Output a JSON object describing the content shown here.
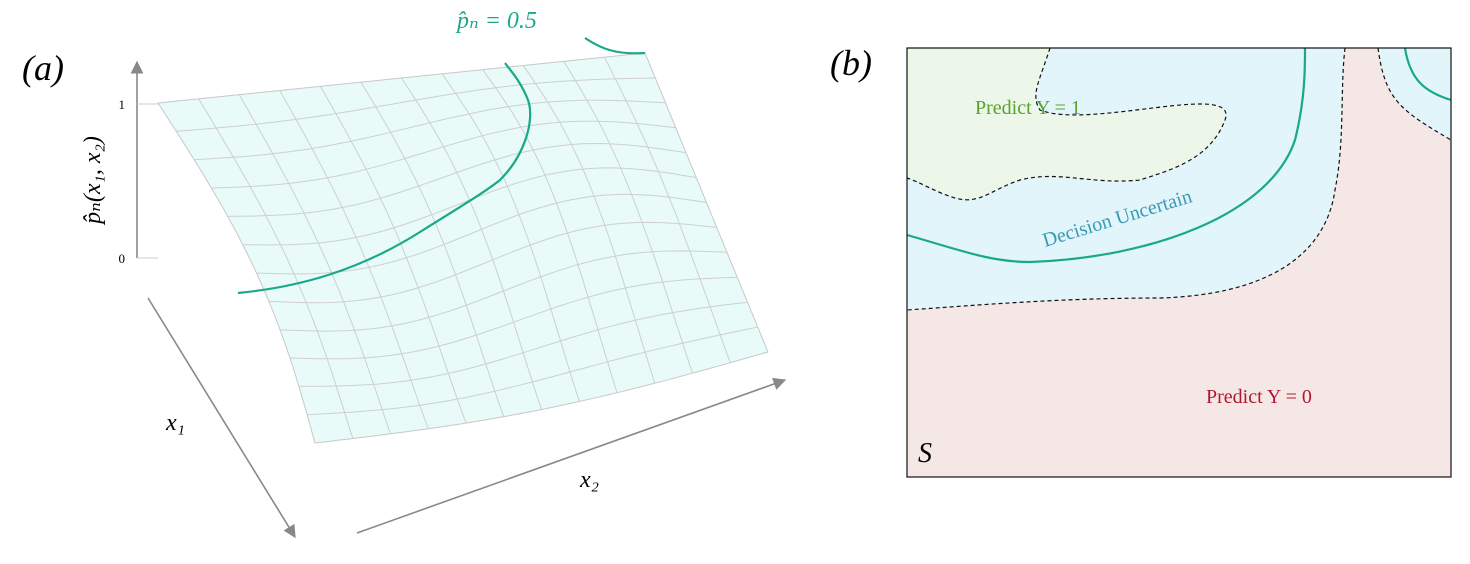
{
  "panel_a": {
    "label": "(a)",
    "contour_label": "p̂ₙ = 0.5",
    "z_axis_label": "p̂ₙ(x₁, x₂)",
    "z_tick_top": "1",
    "z_tick_bottom": "0",
    "x1_label": "x₁",
    "x2_label": "x₂"
  },
  "panel_b": {
    "label": "(b)",
    "region_1": "Predict Y = 1",
    "region_uncertain": "Decision Uncertain",
    "region_0": "Predict Y = 0",
    "set_label": "S"
  }
}
